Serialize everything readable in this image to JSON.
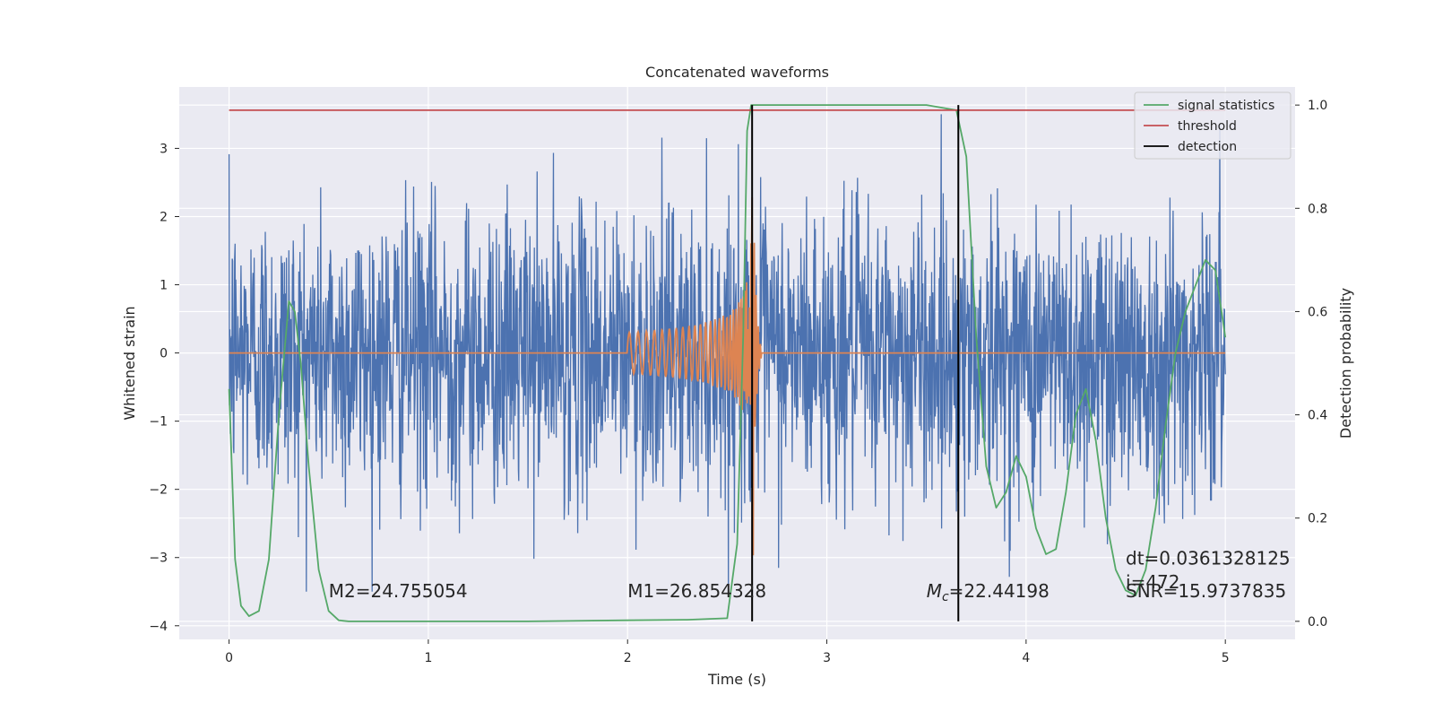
{
  "chart_data": {
    "type": "line",
    "title": "Concatenated waveforms",
    "xlabel": "Time (s)",
    "ylabel": "Whitened strain",
    "ylabel_right": "Detection probability",
    "xlim": [
      -0.25,
      5.35
    ],
    "ylim": [
      -4.2,
      3.9
    ],
    "ylim_right": [
      -0.035,
      1.035
    ],
    "x_ticks": [
      0,
      1,
      2,
      3,
      4,
      5
    ],
    "y_ticks": [
      -4,
      -3,
      -2,
      -1,
      0,
      1,
      2,
      3
    ],
    "y_ticks_right": [
      0.0,
      0.2,
      0.4,
      0.6,
      0.8,
      1.0
    ],
    "grid": true,
    "legend_position": "top-right",
    "colors": {
      "background": "#eaeaf2",
      "strain": "#4c72b0",
      "waveform": "#dd8452",
      "signal_statistics": "#55a868",
      "threshold": "#c44e52",
      "detection": "#000000"
    },
    "series": [
      {
        "name": "",
        "axis": "left",
        "description_key": "whitened_strain_noise",
        "x_range": [
          0,
          5
        ],
        "approx_amplitude_range": [
          -3.5,
          3.5
        ]
      },
      {
        "name": "",
        "axis": "left",
        "description_key": "injected_chirp_waveform",
        "x_range": [
          0,
          5
        ],
        "chirp_start": 2.0,
        "chirp_end": 2.67,
        "peak_amplitude": 3.3
      },
      {
        "name": "signal statistics",
        "axis": "right",
        "x": [
          0.0,
          0.03,
          0.06,
          0.1,
          0.15,
          0.2,
          0.25,
          0.3,
          0.33,
          0.36,
          0.4,
          0.45,
          0.5,
          0.55,
          0.6,
          1.0,
          1.5,
          2.0,
          2.3,
          2.5,
          2.55,
          2.58,
          2.6,
          2.62,
          2.65,
          2.7,
          3.0,
          3.5,
          3.65,
          3.7,
          3.75,
          3.8,
          3.85,
          3.9,
          3.95,
          4.0,
          4.05,
          4.1,
          4.15,
          4.2,
          4.25,
          4.3,
          4.35,
          4.4,
          4.45,
          4.5,
          4.55,
          4.6,
          4.65,
          4.7,
          4.75,
          4.8,
          4.85,
          4.9,
          4.95,
          5.0
        ],
        "y": [
          0.45,
          0.12,
          0.03,
          0.01,
          0.02,
          0.12,
          0.4,
          0.62,
          0.6,
          0.5,
          0.3,
          0.1,
          0.02,
          0.002,
          0.0,
          0.0,
          0.0,
          0.002,
          0.003,
          0.006,
          0.15,
          0.55,
          0.95,
          1.0,
          1.0,
          1.0,
          1.0,
          1.0,
          0.99,
          0.9,
          0.55,
          0.3,
          0.22,
          0.25,
          0.32,
          0.28,
          0.18,
          0.13,
          0.14,
          0.25,
          0.4,
          0.45,
          0.35,
          0.2,
          0.1,
          0.06,
          0.05,
          0.1,
          0.22,
          0.38,
          0.52,
          0.6,
          0.65,
          0.7,
          0.68,
          0.55
        ]
      },
      {
        "name": "threshold",
        "axis": "right",
        "x": [
          0,
          5
        ],
        "y": [
          0.99,
          0.99
        ]
      },
      {
        "name": "detection",
        "axis": "right",
        "vlines_x": [
          2.625,
          3.66
        ],
        "y_span": [
          0.0,
          1.0
        ]
      }
    ],
    "annotations": [
      {
        "key": "m2",
        "text": "M2=24.755054",
        "x": 0.5,
        "y": -3.58
      },
      {
        "key": "m1",
        "text": "M1=26.854328",
        "x": 2.0,
        "y": -3.58
      },
      {
        "key": "mc",
        "prefix": "M",
        "subscript": "c",
        "suffix": "=22.44198",
        "x": 3.5,
        "y": -3.58
      },
      {
        "key": "dt",
        "text": "dt=0.0361328125",
        "x": 4.5,
        "y": -3.1
      },
      {
        "key": "i",
        "text": " i=472",
        "x": 4.5,
        "y": -3.45
      },
      {
        "key": "snr",
        "text": "SNR=15.9737835",
        "x": 4.5,
        "y": -3.58
      }
    ]
  }
}
